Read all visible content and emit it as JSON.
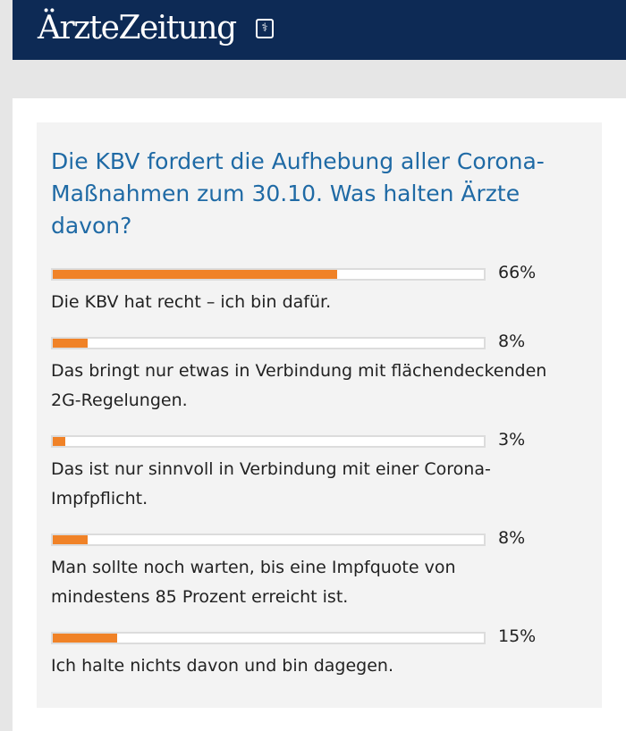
{
  "header": {
    "logo": "ÄrzteZeitung",
    "logo_mark": "⚕"
  },
  "poll": {
    "question": "Die KBV fordert die Aufhebung aller Corona-Maßnahmen zum 30.10. Was halten Ärzte davon?",
    "options": [
      {
        "label": "Die KBV hat recht – ich bin dafür.",
        "percent_text": "66%",
        "percent": 66
      },
      {
        "label": "Das bringt nur etwas in Verbindung mit flächendeckenden 2G-Regelungen.",
        "percent_text": "8%",
        "percent": 8
      },
      {
        "label": "Das ist nur sinnvoll in Verbindung mit einer Corona-Impfpflicht.",
        "percent_text": "3%",
        "percent": 3
      },
      {
        "label": "Man sollte noch warten, bis eine Impfquote von mindestens 85 Prozent erreicht ist.",
        "percent_text": "8%",
        "percent": 8
      },
      {
        "label": "Ich halte nichts davon und bin dagegen.",
        "percent_text": "15%",
        "percent": 15
      }
    ]
  },
  "colors": {
    "header_bg": "#0d2a55",
    "question": "#1f6aa5",
    "bar_fill": "#f08227"
  }
}
